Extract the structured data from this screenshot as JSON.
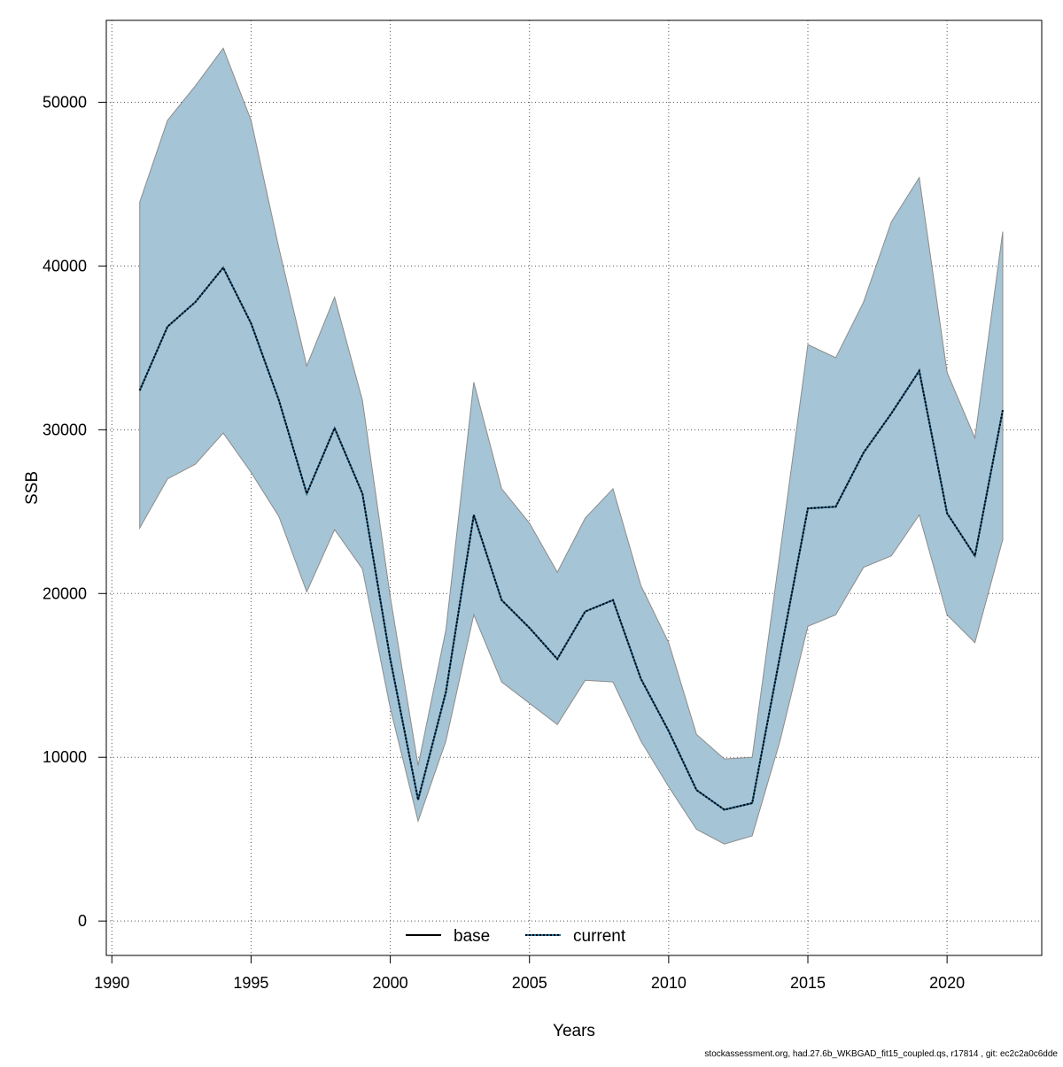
{
  "chart_data": {
    "type": "area",
    "xlabel": "Years",
    "ylabel": "SSB",
    "xlim": [
      1989.8,
      2023.4
    ],
    "ylim": [
      -2100,
      55000
    ],
    "x_ticks": [
      1990,
      1995,
      2000,
      2005,
      2010,
      2015,
      2020
    ],
    "y_ticks": [
      0,
      10000,
      20000,
      30000,
      40000,
      50000
    ],
    "grid": true,
    "legend": {
      "position": "bottom-center",
      "entries": [
        {
          "label": "base",
          "style": "solid",
          "color": "#000000"
        },
        {
          "label": "current",
          "style": "dotted",
          "color": "#000000",
          "overlay_color": "#1a6fa0"
        }
      ]
    },
    "band_color": "#a5c4d5",
    "band_edge_color": "#8c8c8c",
    "x": [
      1991,
      1992,
      1993,
      1994,
      1995,
      1996,
      1997,
      1998,
      1999,
      2000,
      2001,
      2002,
      2003,
      2004,
      2005,
      2006,
      2007,
      2008,
      2009,
      2010,
      2011,
      2012,
      2013,
      2014,
      2015,
      2016,
      2017,
      2018,
      2019,
      2020,
      2021,
      2022
    ],
    "series": [
      {
        "name": "base",
        "values": [
          32400,
          36300,
          37800,
          39900,
          36500,
          31800,
          26100,
          30100,
          26100,
          16000,
          7400,
          14000,
          24800,
          19600,
          17900,
          16000,
          18900,
          19600,
          14800,
          11600,
          8000,
          6800,
          7200,
          16200,
          25200,
          25300,
          28600,
          31000,
          33600,
          24900,
          22300,
          31200
        ]
      },
      {
        "name": "current",
        "values": [
          32400,
          36300,
          37800,
          39900,
          36500,
          31800,
          26100,
          30100,
          26100,
          16000,
          7400,
          14000,
          24800,
          19600,
          17900,
          16000,
          18900,
          19600,
          14800,
          11600,
          8000,
          6800,
          7200,
          16200,
          25200,
          25300,
          28600,
          31000,
          33600,
          24900,
          22300,
          31200
        ]
      }
    ],
    "lower": [
      24000,
      27000,
      27900,
      29800,
      27400,
      24700,
      20100,
      23900,
      21500,
      13000,
      6100,
      11000,
      18700,
      14600,
      13300,
      12000,
      14700,
      14600,
      11000,
      8200,
      5600,
      4700,
      5200,
      11000,
      18000,
      18700,
      21600,
      22300,
      24800,
      18700,
      17000,
      23300
    ],
    "upper": [
      43900,
      48900,
      51000,
      53300,
      48900,
      41100,
      33900,
      38100,
      31800,
      19800,
      9500,
      17800,
      32900,
      26400,
      24300,
      21300,
      24600,
      26400,
      20500,
      17000,
      11400,
      9900,
      10000,
      22500,
      35200,
      34400,
      37800,
      42700,
      45400,
      33500,
      29500,
      42100
    ]
  },
  "footer": {
    "text": "stockassessment.org, had.27.6b_WKBGAD_fit15_coupled.qs, r17814 , git: ec2c2a0c6dde"
  }
}
